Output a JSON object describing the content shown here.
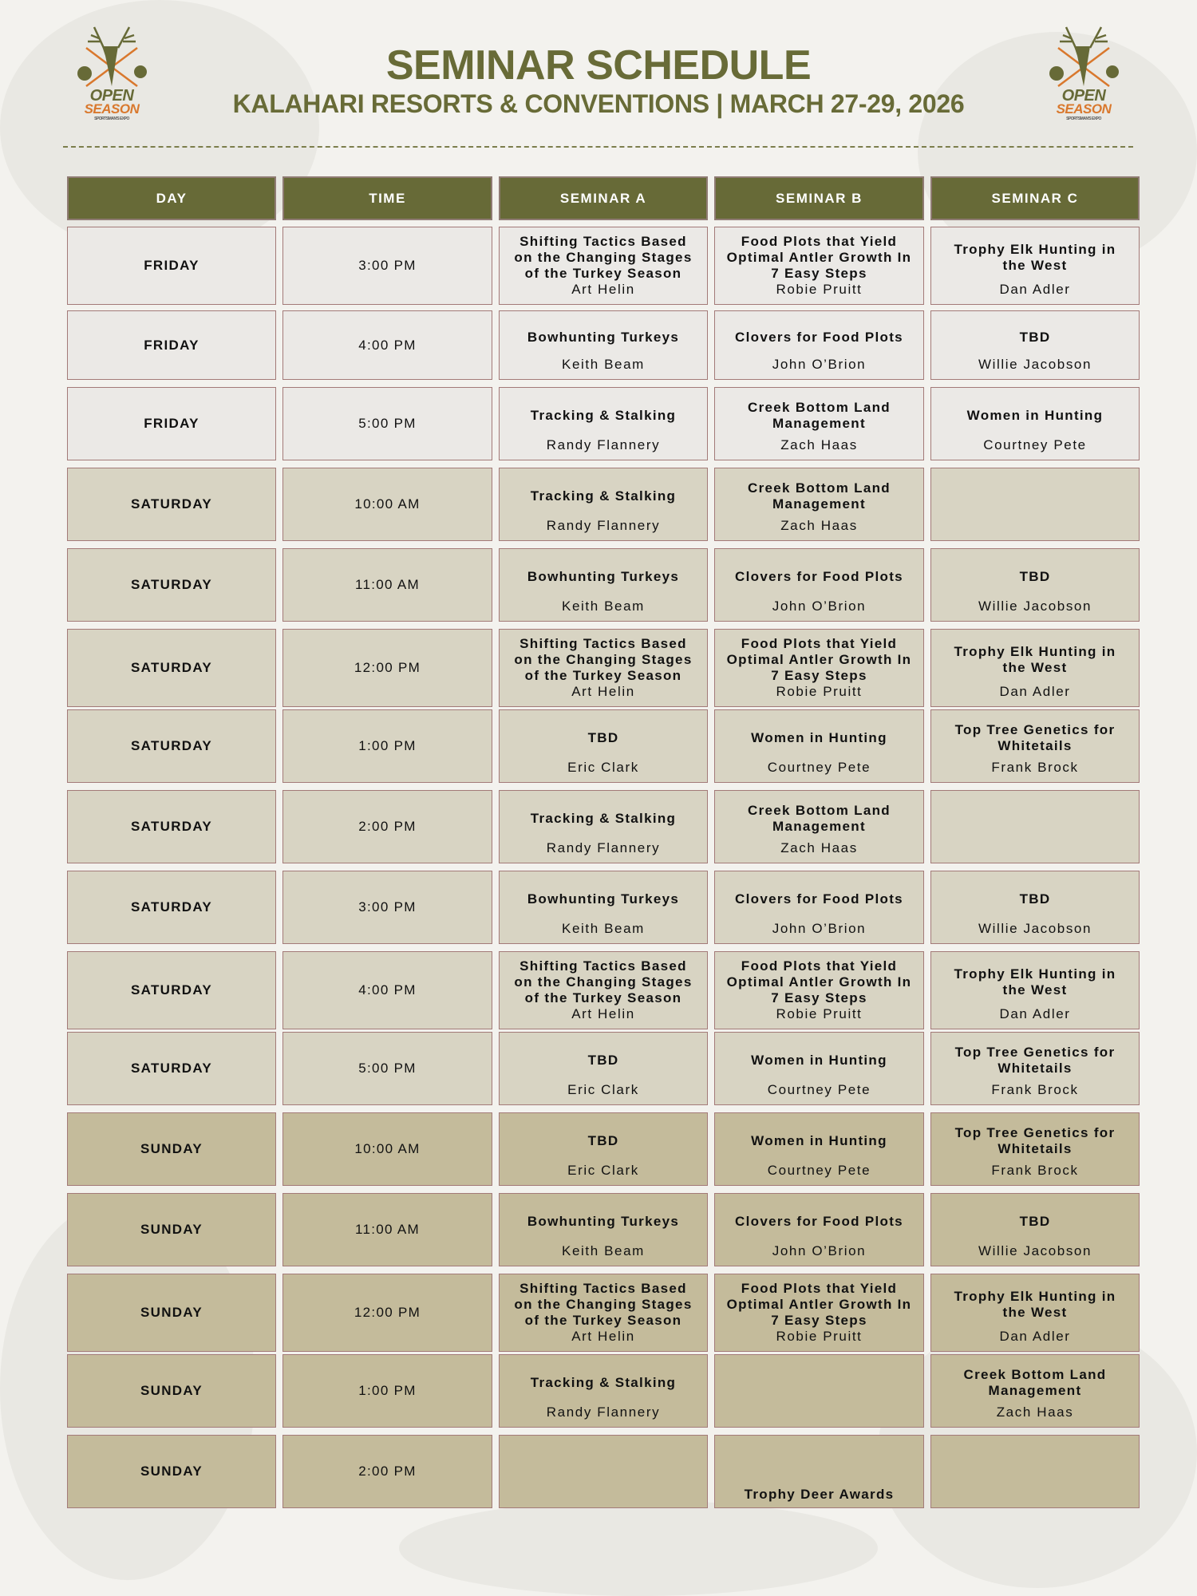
{
  "header": {
    "title": "SEMINAR SCHEDULE",
    "subtitle": "KALAHARI RESORTS & CONVENTIONS | MARCH 27-29, 2026",
    "logo_text": [
      "OPEN",
      "SEASON",
      "SPORTSMAN'S EXPO"
    ]
  },
  "colors": {
    "header_bg": "#676a37",
    "friday_bg": "#ebe9e6",
    "saturday_bg": "#d8d4c3",
    "sunday_bg": "#c4bb9b",
    "border": "#a37a78",
    "logo_orange": "#d9782d"
  },
  "columns": [
    "DAY",
    "TIME",
    "SEMINAR A",
    "SEMINAR B",
    "SEMINAR C"
  ],
  "rows": [
    {
      "day": "FRIDAY",
      "time": "3:00 PM",
      "a": {
        "title": "Shifting Tactics Based on the Changing Stages of the Turkey Season",
        "speaker": "Art Helin"
      },
      "b": {
        "title": "Food Plots that Yield Optimal Antler Growth In 7 Easy Steps",
        "speaker": "Robie Pruitt"
      },
      "c": {
        "title": "Trophy Elk Hunting in the West",
        "speaker": "Dan Adler"
      }
    },
    {
      "day": "FRIDAY",
      "time": "4:00 PM",
      "a": {
        "title": "Bowhunting Turkeys",
        "speaker": "Keith Beam"
      },
      "b": {
        "title": "Clovers for Food Plots",
        "speaker": "John O’Brion"
      },
      "c": {
        "title": "TBD",
        "speaker": "Willie Jacobson"
      }
    },
    {
      "day": "FRIDAY",
      "time": "5:00 PM",
      "a": {
        "title": "Tracking & Stalking",
        "speaker": "Randy Flannery"
      },
      "b": {
        "title": "Creek Bottom Land Management",
        "speaker": "Zach Haas"
      },
      "c": {
        "title": "Women in Hunting",
        "speaker": "Courtney Pete"
      }
    },
    {
      "day": "SATURDAY",
      "time": "10:00 AM",
      "a": {
        "title": "Tracking & Stalking",
        "speaker": "Randy Flannery"
      },
      "b": {
        "title": "Creek Bottom Land Management",
        "speaker": "Zach Haas"
      },
      "c": null
    },
    {
      "day": "SATURDAY",
      "time": "11:00 AM",
      "a": {
        "title": "Bowhunting Turkeys",
        "speaker": "Keith Beam"
      },
      "b": {
        "title": "Clovers for Food Plots",
        "speaker": "John O’Brion"
      },
      "c": {
        "title": "TBD",
        "speaker": "Willie Jacobson"
      }
    },
    {
      "day": "SATURDAY",
      "time": "12:00 PM",
      "a": {
        "title": "Shifting Tactics Based on the Changing Stages of the Turkey Season",
        "speaker": "Art Helin"
      },
      "b": {
        "title": "Food Plots that Yield Optimal Antler Growth In 7 Easy Steps",
        "speaker": "Robie Pruitt"
      },
      "c": {
        "title": "Trophy Elk Hunting in the West",
        "speaker": "Dan Adler"
      }
    },
    {
      "day": "SATURDAY",
      "time": "1:00 PM",
      "a": {
        "title": "TBD",
        "speaker": "Eric Clark"
      },
      "b": {
        "title": "Women in Hunting",
        "speaker": "Courtney Pete"
      },
      "c": {
        "title": "Top Tree Genetics for Whitetails",
        "speaker": "Frank Brock"
      }
    },
    {
      "day": "SATURDAY",
      "time": "2:00 PM",
      "a": {
        "title": "Tracking & Stalking",
        "speaker": "Randy Flannery"
      },
      "b": {
        "title": "Creek Bottom Land Management",
        "speaker": "Zach Haas"
      },
      "c": null
    },
    {
      "day": "SATURDAY",
      "time": "3:00 PM",
      "a": {
        "title": "Bowhunting Turkeys",
        "speaker": "Keith Beam"
      },
      "b": {
        "title": "Clovers for Food Plots",
        "speaker": "John O’Brion"
      },
      "c": {
        "title": "TBD",
        "speaker": "Willie Jacobson"
      }
    },
    {
      "day": "SATURDAY",
      "time": "4:00 PM",
      "a": {
        "title": "Shifting Tactics Based on the Changing Stages of the Turkey Season",
        "speaker": "Art Helin"
      },
      "b": {
        "title": "Food Plots that Yield Optimal Antler Growth In 7 Easy Steps",
        "speaker": "Robie Pruitt"
      },
      "c": {
        "title": "Trophy Elk Hunting in the West",
        "speaker": "Dan Adler"
      }
    },
    {
      "day": "SATURDAY",
      "time": "5:00 PM",
      "a": {
        "title": "TBD",
        "speaker": "Eric Clark"
      },
      "b": {
        "title": "Women in Hunting",
        "speaker": "Courtney Pete"
      },
      "c": {
        "title": "Top Tree Genetics for Whitetails",
        "speaker": "Frank Brock"
      }
    },
    {
      "day": "SUNDAY",
      "time": "10:00 AM",
      "a": {
        "title": "TBD",
        "speaker": "Eric Clark"
      },
      "b": {
        "title": "Women in Hunting",
        "speaker": "Courtney Pete"
      },
      "c": {
        "title": "Top Tree Genetics for Whitetails",
        "speaker": "Frank Brock"
      }
    },
    {
      "day": "SUNDAY",
      "time": "11:00 AM",
      "a": {
        "title": "Bowhunting Turkeys",
        "speaker": "Keith Beam"
      },
      "b": {
        "title": "Clovers for Food Plots",
        "speaker": "John O’Brion"
      },
      "c": {
        "title": "TBD",
        "speaker": "Willie Jacobson"
      }
    },
    {
      "day": "SUNDAY",
      "time": "12:00 PM",
      "a": {
        "title": "Shifting Tactics Based on the Changing Stages of the Turkey Season",
        "speaker": "Art Helin"
      },
      "b": {
        "title": "Food Plots that Yield Optimal Antler Growth In 7 Easy Steps",
        "speaker": "Robie Pruitt"
      },
      "c": {
        "title": "Trophy Elk Hunting in the West",
        "speaker": "Dan Adler"
      }
    },
    {
      "day": "SUNDAY",
      "time": "1:00 PM",
      "a": {
        "title": "Tracking & Stalking",
        "speaker": "Randy Flannery"
      },
      "b": null,
      "c": {
        "title": "Creek Bottom Land Management",
        "speaker": "Zach Haas"
      }
    },
    {
      "day": "SUNDAY",
      "time": "2:00 PM",
      "a": null,
      "b": {
        "title": "Trophy Deer Awards",
        "speaker": ""
      },
      "c": null
    }
  ]
}
